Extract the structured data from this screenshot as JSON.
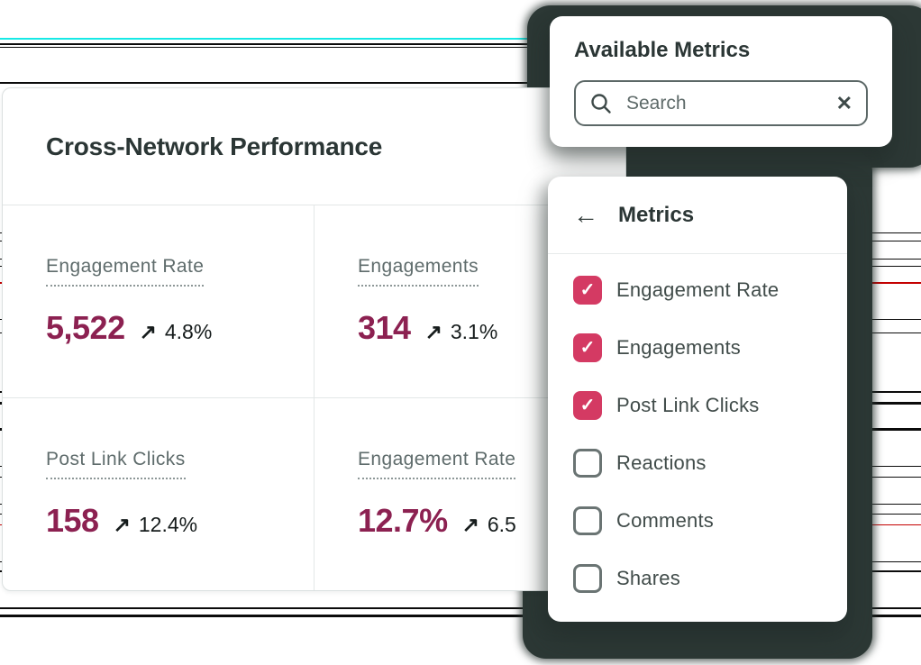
{
  "performance_card": {
    "title": "Cross-Network Performance",
    "metrics": [
      {
        "label": "Engagement Rate",
        "value": "5,522",
        "delta": "4.8%"
      },
      {
        "label": "Engagements",
        "value": "314",
        "delta": "3.1%"
      },
      {
        "label": "Post Link Clicks",
        "value": "158",
        "delta": "12.4%"
      },
      {
        "label": "Engagement Rate",
        "value": "12.7%",
        "delta": "6.5"
      }
    ]
  },
  "available_metrics_popover": {
    "title": "Available Metrics",
    "search": {
      "placeholder": "Search",
      "value": ""
    }
  },
  "metrics_panel": {
    "title": "Metrics",
    "items": [
      {
        "label": "Engagement Rate",
        "checked": true
      },
      {
        "label": "Engagements",
        "checked": true
      },
      {
        "label": "Post Link Clicks",
        "checked": true
      },
      {
        "label": "Reactions",
        "checked": false
      },
      {
        "label": "Comments",
        "checked": false
      },
      {
        "label": "Shares",
        "checked": false
      }
    ]
  },
  "icons": {
    "trend_up": "↗",
    "back_arrow": "←",
    "check": "✓",
    "close": "✕"
  },
  "colors": {
    "accent_pink": "#d43a63",
    "value_maroon": "#8c2151",
    "panel_dark": "#2c3835",
    "label_gray": "#5f6c6c",
    "artifact_cyan": "#17e9e6",
    "artifact_red": "#c40000"
  }
}
